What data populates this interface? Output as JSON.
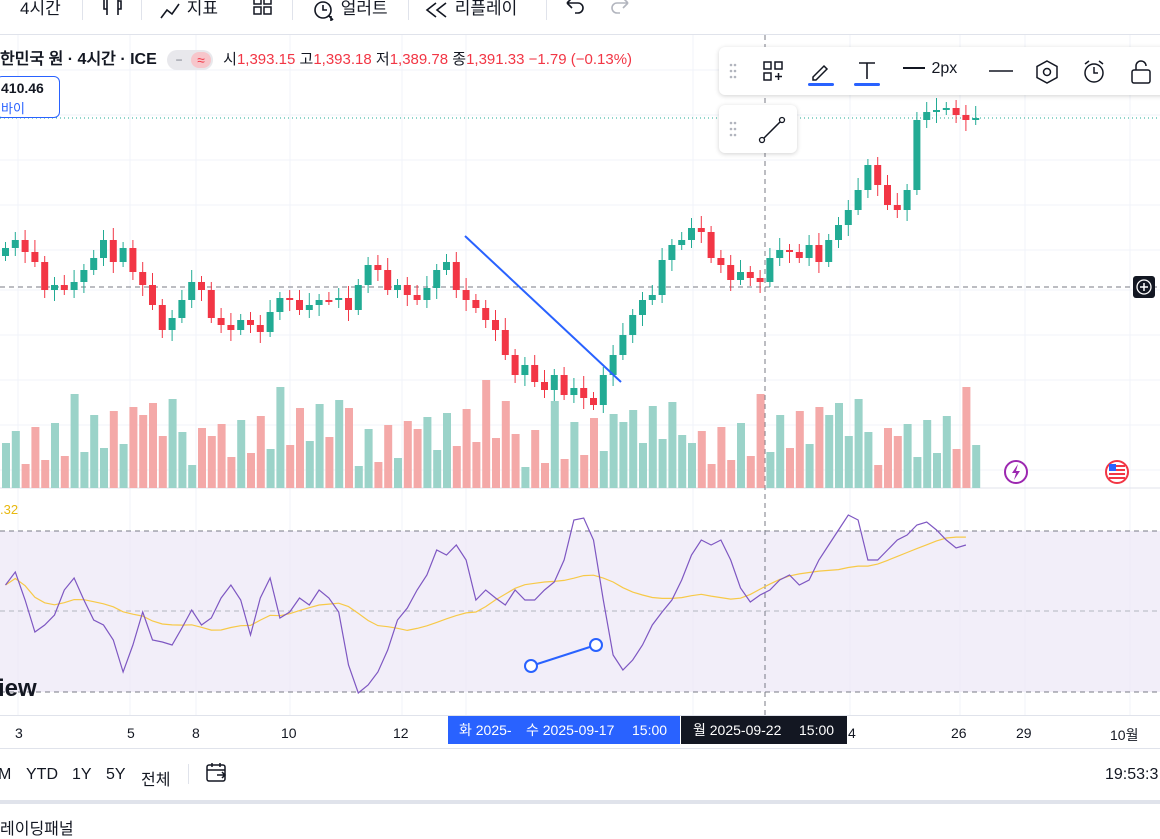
{
  "toolbar": {
    "interval": "4시간",
    "indicators": "지표",
    "alert": "얼러트",
    "replay": "리플레이"
  },
  "legend": {
    "symbol": "한민국 원 · 4시간 · ICE",
    "open_label": "시",
    "open": "1,393.15",
    "high_label": "고",
    "high": "1,393.18",
    "low_label": "저",
    "low": "1,389.78",
    "close_label": "종",
    "close": "1,391.33",
    "change": "−1.79 (−0.13%)"
  },
  "price_box": {
    "price": "410.46",
    "side": "바이"
  },
  "drawing_toolbar": {
    "width_label": "2px"
  },
  "rsi": {
    "value": ".32"
  },
  "watermark": "iew",
  "xaxis": {
    "ticks": [
      {
        "label": "3"
      },
      {
        "label": "5"
      },
      {
        "label": "8"
      },
      {
        "label": "10"
      },
      {
        "label": "12"
      },
      {
        "label": "4"
      },
      {
        "label": "26"
      },
      {
        "label": "29"
      },
      {
        "label": "10월"
      }
    ],
    "range_label": {
      "start_part": "화 2025-",
      "date": "수 2025-09-17",
      "time": "15:00"
    },
    "crosshair_label": {
      "date": "월 2025-09-22",
      "time": "15:00"
    }
  },
  "bottombar": {
    "ranges": [
      "M",
      "YTD",
      "1Y",
      "5Y",
      "전체"
    ],
    "clock": "19:53:3"
  },
  "panel": {
    "title": "레이딩패널"
  },
  "colors": {
    "up": "#22ab94",
    "down": "#f23645",
    "accent": "#2962ff",
    "rsi": "#7e57c2",
    "rsi_ma": "#f7c948"
  }
}
